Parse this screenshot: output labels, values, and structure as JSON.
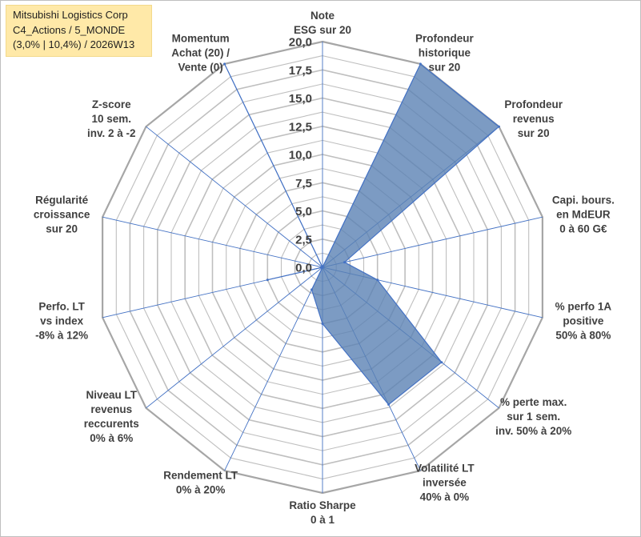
{
  "chart_data": {
    "type": "radar",
    "title_lines": [
      "Mitsubishi Logistics Corp",
      "C4_Actions / 5_MONDE",
      "(3,0% | 10,4%) / 2026W13"
    ],
    "range": [
      0,
      20
    ],
    "ticks": [
      "0,0",
      "2,5",
      "5,0",
      "7,5",
      "10,0",
      "12,5",
      "15,0",
      "17,5",
      "20,0"
    ],
    "tick_values": [
      0,
      2.5,
      5,
      7.5,
      10,
      12.5,
      15,
      17.5,
      20
    ],
    "axes": [
      {
        "lines": [
          "Note",
          "ESG sur 20"
        ],
        "value": 0
      },
      {
        "lines": [
          "Profondeur",
          "historique",
          "sur 20"
        ],
        "value": 20
      },
      {
        "lines": [
          "Profondeur",
          "revenus",
          "sur 20"
        ],
        "value": 20
      },
      {
        "lines": [
          "Capi. bours.",
          "en MdEUR",
          "0 à 60 G€"
        ],
        "value": 2
      },
      {
        "lines": [
          "% perfo 1A",
          "positive",
          "50% à 80%"
        ],
        "value": 5
      },
      {
        "lines": [
          "% perte max.",
          "sur 1 sem.",
          "inv. 50% à 20%"
        ],
        "value": 13.5
      },
      {
        "lines": [
          "Volatilité LT",
          "inversée",
          "40% à 0%"
        ],
        "value": 13.5
      },
      {
        "lines": [
          "Ratio Sharpe",
          "0 à 1"
        ],
        "value": 5
      },
      {
        "lines": [
          "Rendement LT",
          "0% à 20%"
        ],
        "value": 2.2
      },
      {
        "lines": [
          "Niveau LT",
          "revenus",
          "reccurents",
          "0% à 6%"
        ],
        "value": 0
      },
      {
        "lines": [
          "Perfo. LT",
          "vs index",
          "-8% à 12%"
        ],
        "value": 5
      },
      {
        "lines": [
          "Régularité",
          "croissance",
          "sur 20"
        ],
        "value": 0
      },
      {
        "lines": [
          "Z-score",
          "10 sem.",
          "inv. 2 à -2"
        ],
        "value": 0
      },
      {
        "lines": [
          "Momentum",
          "Achat (20) /",
          "Vente (0)"
        ],
        "value": 20
      }
    ],
    "colors": {
      "fill": "#5b82b4",
      "stroke": "#4472c4",
      "ring": "#bfbfbf",
      "ring_outer": "#a6a6a6",
      "spoke": "#4472c4",
      "text": "#404040"
    }
  }
}
